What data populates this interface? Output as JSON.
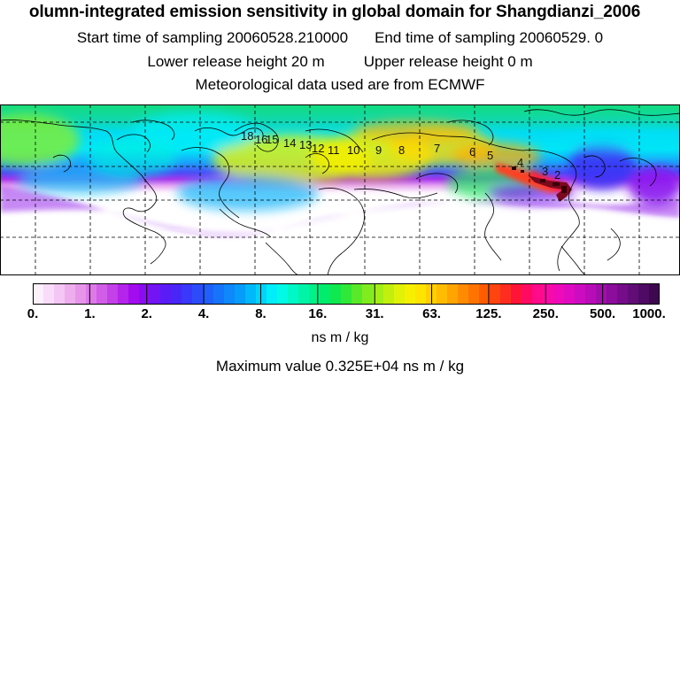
{
  "header": {
    "title": "olumn-integrated emission sensitivity in global domain for Shangdianzi_2006",
    "start_label": "Start time of sampling 20060528.210000",
    "end_label": "End time of sampling 20060529.     0",
    "lower_label": "Lower release height   20 m",
    "upper_label": "Upper release height    0 m",
    "met_label": "Meteorological data used are from ECMWF"
  },
  "map": {
    "trajectory_labels": [
      "18",
      "16",
      "15",
      "14",
      "13",
      "12",
      "11",
      "10",
      "9",
      "8",
      "7",
      "6",
      "5",
      "4",
      "3",
      "2"
    ],
    "colors": {
      "background": "#ffffff",
      "coastline": "#000000",
      "grid": "#000000",
      "source_region": "#7a0a1e"
    }
  },
  "colorbar": {
    "tick_labels": [
      "0.",
      "1.",
      "2.",
      "4.",
      "8.",
      "16.",
      "31.",
      "63.",
      "125.",
      "250.",
      "500.",
      "1000."
    ],
    "colors": [
      "#fdf0fd",
      "#f9dcf9",
      "#f4c6f4",
      "#eeaeee",
      "#e795ea",
      "#dd7ae8",
      "#d25ee8",
      "#c440e8",
      "#b424ea",
      "#a20cee",
      "#8a0cf2",
      "#7214f4",
      "#5a1cf6",
      "#4826f8",
      "#3a38fa",
      "#2c4cfa",
      "#2060fa",
      "#1674fa",
      "#0e88fa",
      "#069cfa",
      "#00b8fa",
      "#00d4fa",
      "#00eefa",
      "#00fae6",
      "#00f8c8",
      "#00f4a8",
      "#00f08a",
      "#00ec6c",
      "#10e850",
      "#30e838",
      "#58ea2a",
      "#7eec1e",
      "#a2ee16",
      "#c2f00e",
      "#e0f208",
      "#f6f000",
      "#ffe400",
      "#ffd000",
      "#ffbc00",
      "#ffa400",
      "#ff8c00",
      "#ff7400",
      "#ff5c00",
      "#ff4410",
      "#ff2c20",
      "#ff1438",
      "#ff0a60",
      "#ff0a88",
      "#f80aa8",
      "#ee0ab8",
      "#e00ac0",
      "#cc0cc0",
      "#b80cb8",
      "#a20cac",
      "#8c0c9c",
      "#760c8a",
      "#620c78",
      "#4e0a64",
      "#3e0850"
    ]
  },
  "units": "ns m / kg",
  "max_value_label": "Maximum value  0.325E+04 ns m / kg"
}
